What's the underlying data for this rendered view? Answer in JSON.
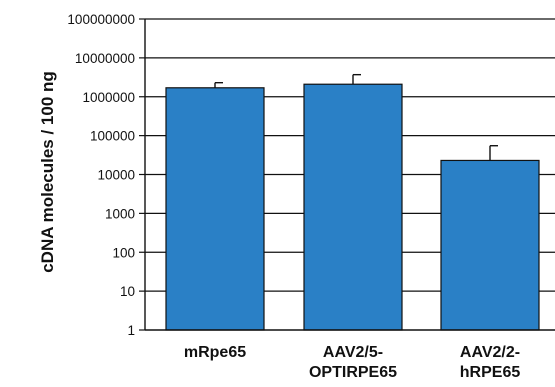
{
  "chart_data": {
    "type": "bar",
    "ylabel": "cDNA molecules / 100 ng",
    "yscale": "log",
    "ylim": [
      1,
      100000000
    ],
    "grid": "horizontal",
    "yticks": [
      "1",
      "10",
      "100",
      "1000",
      "10000",
      "100000",
      "1000000",
      "10000000",
      "100000000"
    ],
    "categories": [
      [
        "mRpe65"
      ],
      [
        "AAV2/5-",
        "OPTIRPE65"
      ],
      [
        "AAV2/2-",
        "hRPE65"
      ]
    ],
    "values": [
      1700000,
      2100000,
      23000
    ],
    "errors_upper": [
      2300000,
      3700000,
      55000
    ],
    "colors": {
      "bar": "#2a80c6",
      "edge": "#111111",
      "grid": "#111111"
    }
  }
}
